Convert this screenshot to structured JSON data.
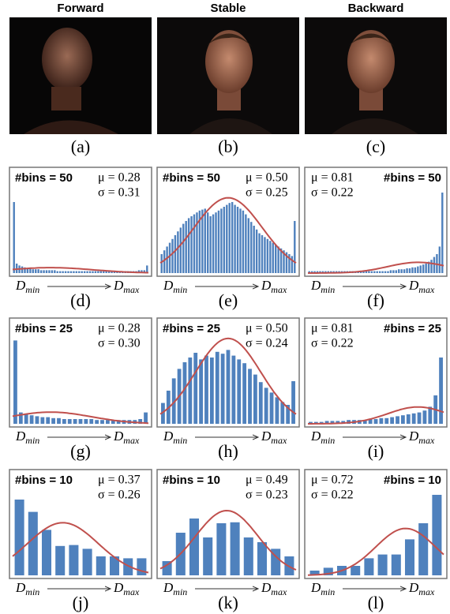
{
  "columns": [
    "Forward",
    "Stable",
    "Backward"
  ],
  "image_captions": [
    "(a)",
    "(b)",
    "(c)"
  ],
  "axis": {
    "start": "D",
    "start_sub": "min",
    "end": "D",
    "end_sub": "max"
  },
  "panels": [
    {
      "caption": "(d)",
      "bins_label": "#bins = 50",
      "mu": {
        "value": 0.28,
        "label": "μ = 0.28"
      },
      "sigma": {
        "value": 0.31,
        "label": "σ = 0.31"
      },
      "values": [
        75,
        10,
        8,
        7,
        6,
        5,
        5,
        4,
        4,
        4,
        3,
        3,
        3,
        3,
        3,
        3,
        2,
        2,
        2,
        2,
        2,
        2,
        2,
        2,
        2,
        2,
        2,
        2,
        2,
        2,
        2,
        2,
        2,
        2,
        2,
        2,
        2,
        2,
        2,
        2,
        2,
        2,
        2,
        2,
        2,
        2,
        3,
        3,
        3,
        8
      ]
    },
    {
      "caption": "(e)",
      "bins_label": "#bins = 50",
      "mu": {
        "value": 0.5,
        "label": "μ = 0.50"
      },
      "sigma": {
        "value": 0.25,
        "label": "σ = 0.25"
      },
      "values": [
        20,
        24,
        28,
        32,
        36,
        40,
        44,
        48,
        52,
        55,
        58,
        60,
        62,
        64,
        66,
        67,
        68,
        64,
        60,
        62,
        64,
        66,
        68,
        70,
        72,
        74,
        75,
        72,
        70,
        68,
        66,
        62,
        58,
        54,
        50,
        46,
        42,
        40,
        38,
        36,
        34,
        32,
        30,
        28,
        26,
        24,
        22,
        20,
        18,
        55
      ]
    },
    {
      "caption": "(f)",
      "bins_label": "#bins = 50",
      "mu": {
        "value": 0.81,
        "label": "μ = 0.81"
      },
      "sigma": {
        "value": 0.22,
        "label": "σ = 0.22"
      },
      "values": [
        2,
        2,
        2,
        2,
        2,
        2,
        2,
        2,
        2,
        2,
        2,
        2,
        2,
        2,
        2,
        2,
        2,
        2,
        2,
        2,
        2,
        2,
        2,
        2,
        2,
        2,
        2,
        2,
        2,
        2,
        3,
        3,
        3,
        4,
        4,
        4,
        5,
        5,
        6,
        6,
        7,
        8,
        9,
        10,
        12,
        14,
        17,
        20,
        28,
        85
      ]
    },
    {
      "caption": "(g)",
      "bins_label": "#bins = 25",
      "mu": {
        "value": 0.28,
        "label": "μ = 0.28"
      },
      "sigma": {
        "value": 0.3,
        "label": "σ = 0.30"
      },
      "values": [
        88,
        12,
        10,
        9,
        8,
        7,
        7,
        6,
        6,
        5,
        5,
        5,
        5,
        5,
        5,
        4,
        4,
        4,
        4,
        4,
        4,
        4,
        4,
        5,
        12
      ]
    },
    {
      "caption": "(h)",
      "bins_label": "#bins = 25",
      "mu": {
        "value": 0.5,
        "label": "μ = 0.50"
      },
      "sigma": {
        "value": 0.24,
        "label": "σ = 0.24"
      },
      "values": [
        22,
        35,
        48,
        58,
        65,
        70,
        75,
        68,
        72,
        70,
        76,
        74,
        78,
        72,
        68,
        64,
        58,
        52,
        44,
        38,
        33,
        28,
        23,
        20,
        45
      ]
    },
    {
      "caption": "(i)",
      "bins_label": "#bins = 25",
      "mu": {
        "value": 0.81,
        "label": "μ = 0.81"
      },
      "sigma": {
        "value": 0.22,
        "label": "σ = 0.22"
      },
      "values": [
        2,
        2,
        2,
        3,
        3,
        3,
        3,
        4,
        4,
        4,
        4,
        5,
        5,
        6,
        6,
        7,
        8,
        9,
        10,
        11,
        12,
        14,
        18,
        30,
        70
      ]
    },
    {
      "caption": "(j)",
      "bins_label": "#bins = 10",
      "mu": {
        "value": 0.37,
        "label": "μ = 0.37"
      },
      "sigma": {
        "value": 0.26,
        "label": "σ = 0.26"
      },
      "values": [
        80,
        67,
        48,
        31,
        32,
        28,
        20,
        20,
        18,
        18
      ]
    },
    {
      "caption": "(k)",
      "bins_label": "#bins = 10",
      "mu": {
        "value": 0.49,
        "label": "μ = 0.49"
      },
      "sigma": {
        "value": 0.23,
        "label": "σ = 0.23"
      },
      "values": [
        15,
        45,
        60,
        40,
        55,
        56,
        40,
        35,
        28,
        20
      ]
    },
    {
      "caption": "(l)",
      "bins_label": "#bins = 10",
      "mu": {
        "value": 0.72,
        "label": "μ = 0.72"
      },
      "sigma": {
        "value": 0.22,
        "label": "σ = 0.22"
      },
      "values": [
        5,
        8,
        10,
        10,
        18,
        22,
        22,
        38,
        55,
        85
      ]
    }
  ]
}
